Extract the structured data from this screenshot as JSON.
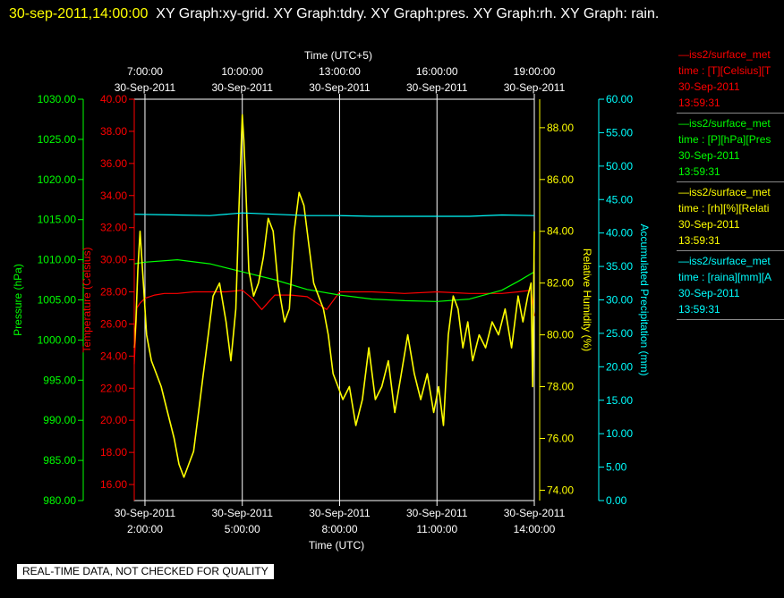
{
  "header": {
    "timestamp": "30-sep-2011,14:00:00",
    "graphs_text": "XY Graph:xy-grid.  XY Graph:tdry.  XY Graph:pres.  XY Graph:rh.  XY Graph: rain."
  },
  "notice": "REAL-TIME DATA, NOT CHECKED FOR QUALITY",
  "colors": {
    "pressure": "#00ff00",
    "temperature": "#ff0000",
    "humidity": "#ffff00",
    "precipitation": "#00ffff",
    "background": "#000000",
    "timestamp": "#ffff00"
  },
  "legend": [
    {
      "color": "#ff0000",
      "lines": [
        "—iss2/surface_met",
        "time : [T][Celsius][T",
        "30-Sep-2011",
        "13:59:31"
      ]
    },
    {
      "color": "#00ff00",
      "lines": [
        "—iss2/surface_met",
        "time : [P][hPa][Pres",
        "30-Sep-2011",
        "13:59:31"
      ]
    },
    {
      "color": "#ffff00",
      "lines": [
        "—iss2/surface_met",
        "time : [rh][%][Relati",
        "30-Sep-2011",
        "13:59:31"
      ]
    },
    {
      "color": "#00ffff",
      "lines": [
        "—iss2/surface_met",
        "time : [raina][mm][A",
        "30-Sep-2011",
        "13:59:31"
      ]
    }
  ],
  "chart_data": {
    "type": "line",
    "x_range_utc_hours": [
      1.67,
      14.0
    ],
    "grid": "vertical lines only",
    "top_axis": {
      "label": "Time (UTC+5)",
      "ticks": [
        {
          "utc_hour": 2,
          "lines": [
            "7:00:00",
            "30-Sep-2011"
          ]
        },
        {
          "utc_hour": 5,
          "lines": [
            "10:00:00",
            "30-Sep-2011"
          ]
        },
        {
          "utc_hour": 8,
          "lines": [
            "13:00:00",
            "30-Sep-2011"
          ]
        },
        {
          "utc_hour": 11,
          "lines": [
            "16:00:00",
            "30-Sep-2011"
          ]
        },
        {
          "utc_hour": 14,
          "lines": [
            "19:00:00",
            "30-Sep-2011"
          ]
        }
      ]
    },
    "bottom_axis": {
      "label": "Time (UTC)",
      "ticks": [
        {
          "utc_hour": 2,
          "lines": [
            "30-Sep-2011",
            "2:00:00"
          ]
        },
        {
          "utc_hour": 5,
          "lines": [
            "30-Sep-2011",
            "5:00:00"
          ]
        },
        {
          "utc_hour": 8,
          "lines": [
            "30-Sep-2011",
            "8:00:00"
          ]
        },
        {
          "utc_hour": 11,
          "lines": [
            "30-Sep-2011",
            "11:00:00"
          ]
        },
        {
          "utc_hour": 14,
          "lines": [
            "30-Sep-2011",
            "14:00:00"
          ]
        }
      ]
    },
    "axes": {
      "pressure": {
        "label": "Pressure (hPa)",
        "range": [
          980,
          1030
        ],
        "ticks": [
          "980.00",
          "985.00",
          "990.00",
          "995.00",
          "1000.00",
          "1005.00",
          "1010.00",
          "1015.00",
          "1020.00",
          "1025.00",
          "1030.00"
        ]
      },
      "temperature": {
        "label": "Temperature (Celsius)",
        "range": [
          15,
          40
        ],
        "ticks": [
          "16.00",
          "18.00",
          "20.00",
          "22.00",
          "24.00",
          "26.00",
          "28.00",
          "30.00",
          "32.00",
          "34.00",
          "36.00",
          "38.00",
          "40.00"
        ]
      },
      "humidity": {
        "label": "Relative Humidity (%)",
        "range": [
          73.6,
          89.1
        ],
        "ticks": [
          "74.00",
          "76.00",
          "78.00",
          "80.00",
          "82.00",
          "84.00",
          "86.00",
          "88.00"
        ]
      },
      "precipitation": {
        "label": "Accumulated Precipitation (mm)",
        "range": [
          0,
          60
        ],
        "ticks": [
          "0.00",
          "5.00",
          "10.00",
          "15.00",
          "20.00",
          "25.00",
          "30.00",
          "35.00",
          "40.00",
          "45.00",
          "50.00",
          "55.00",
          "60.00"
        ]
      }
    },
    "series": [
      {
        "axis": "temperature",
        "x": [
          1.67,
          1.75,
          1.85,
          2.0,
          2.3,
          2.6,
          3.0,
          3.5,
          4.0,
          4.5,
          5.0,
          5.3,
          5.6,
          6.0,
          6.5,
          7.0,
          7.3,
          7.6,
          8.0,
          9.0,
          10.0,
          11.0,
          12.0,
          13.0,
          13.5,
          13.9,
          14.0
        ],
        "y": [
          23.5,
          27.0,
          27.3,
          27.6,
          27.8,
          27.9,
          27.9,
          28.0,
          28.0,
          28.0,
          28.1,
          27.6,
          26.9,
          27.8,
          27.8,
          27.7,
          27.3,
          26.9,
          28.0,
          28.0,
          27.9,
          28.0,
          27.9,
          27.9,
          28.0,
          28.1,
          26.5
        ]
      },
      {
        "axis": "pressure",
        "x": [
          1.67,
          2.0,
          3.0,
          4.0,
          5.0,
          6.0,
          7.0,
          8.0,
          9.0,
          10.0,
          11.0,
          12.0,
          13.0,
          13.5,
          14.0
        ],
        "y": [
          1009.5,
          1009.7,
          1010.0,
          1009.5,
          1008.5,
          1007.5,
          1006.3,
          1005.6,
          1005.1,
          1004.9,
          1004.8,
          1005.1,
          1006.2,
          1007.3,
          1008.5
        ]
      },
      {
        "axis": "humidity",
        "x": [
          1.67,
          1.72,
          1.78,
          1.85,
          1.95,
          2.05,
          2.2,
          2.35,
          2.5,
          2.7,
          2.9,
          3.05,
          3.2,
          3.35,
          3.5,
          3.65,
          3.8,
          3.95,
          4.1,
          4.3,
          4.5,
          4.65,
          4.8,
          4.9,
          5.0,
          5.05,
          5.1,
          5.2,
          5.35,
          5.5,
          5.65,
          5.8,
          5.95,
          6.1,
          6.3,
          6.45,
          6.6,
          6.75,
          6.9,
          7.05,
          7.2,
          7.35,
          7.5,
          7.65,
          7.8,
          7.95,
          8.1,
          8.3,
          8.5,
          8.7,
          8.9,
          9.1,
          9.3,
          9.5,
          9.7,
          9.9,
          10.1,
          10.3,
          10.5,
          10.7,
          10.9,
          11.05,
          11.2,
          11.35,
          11.5,
          11.65,
          11.8,
          11.95,
          12.1,
          12.3,
          12.5,
          12.7,
          12.9,
          13.1,
          13.3,
          13.5,
          13.65,
          13.8,
          13.9,
          13.95,
          14.0
        ],
        "y": [
          79.5,
          80.5,
          82.5,
          84.0,
          82.0,
          80.0,
          79.0,
          78.5,
          78.0,
          77.0,
          76.0,
          75.0,
          74.5,
          75.0,
          75.5,
          77.0,
          78.5,
          80.0,
          81.5,
          82.0,
          80.5,
          79.0,
          81.0,
          85.0,
          88.5,
          87.5,
          86.0,
          82.5,
          81.5,
          82.0,
          83.0,
          84.5,
          84.0,
          82.0,
          80.5,
          81.0,
          84.0,
          85.5,
          85.0,
          83.5,
          82.0,
          81.5,
          81.0,
          80.0,
          78.5,
          78.0,
          77.5,
          78.0,
          76.5,
          77.5,
          79.5,
          77.5,
          78.0,
          79.0,
          77.0,
          78.5,
          80.0,
          78.5,
          77.5,
          78.5,
          77.0,
          78.0,
          76.5,
          80.0,
          81.5,
          81.0,
          79.5,
          80.5,
          79.0,
          80.0,
          79.5,
          80.5,
          80.0,
          81.0,
          79.5,
          81.5,
          80.5,
          81.5,
          82.0,
          78.0,
          84.0
        ]
      },
      {
        "axis": "precipitation",
        "x": [
          1.67,
          3.0,
          4.0,
          5.0,
          6.0,
          7.0,
          8.0,
          9.0,
          10.0,
          11.0,
          12.0,
          13.0,
          14.0
        ],
        "y": [
          42.8,
          42.7,
          42.6,
          43.0,
          42.8,
          42.6,
          42.6,
          42.5,
          42.5,
          42.5,
          42.5,
          42.7,
          42.6
        ]
      }
    ]
  }
}
